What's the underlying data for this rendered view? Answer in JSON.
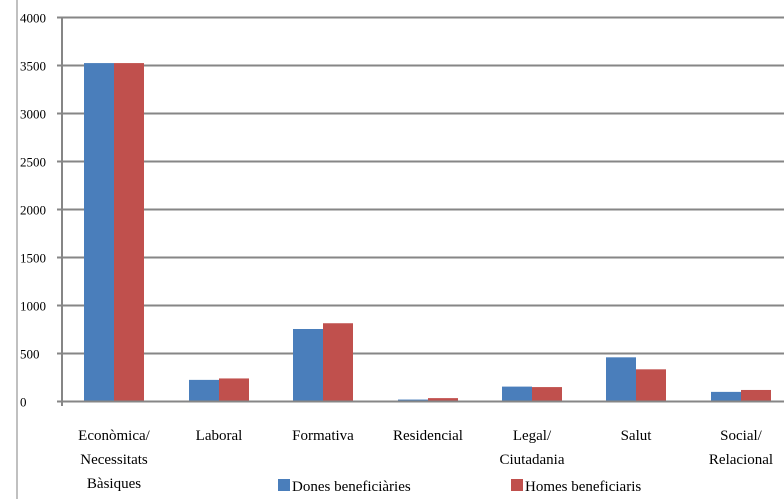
{
  "chart_data": {
    "type": "bar",
    "categories": [
      [
        "Econòmica/",
        "Necessitats",
        "Bàsiques"
      ],
      [
        "Laboral"
      ],
      [
        "Formativa"
      ],
      [
        "Residencial"
      ],
      [
        "Legal/",
        "Ciutadania"
      ],
      [
        "Salut"
      ],
      [
        "Social/",
        "Relacional"
      ]
    ],
    "series": [
      {
        "name": "Dones beneficiàries",
        "color": "#4a7ebb",
        "values": [
          3520,
          220,
          750,
          15,
          150,
          455,
          95
        ]
      },
      {
        "name": "Homes beneficiaris",
        "color": "#c0504d",
        "values": [
          3520,
          235,
          810,
          30,
          145,
          330,
          115
        ]
      }
    ],
    "ylim": [
      0,
      4000
    ],
    "yticks": [
      0,
      500,
      1000,
      1500,
      2000,
      2500,
      3000,
      3500,
      4000
    ],
    "grid": true,
    "legend_position": "bottom-center",
    "title": "",
    "xlabel": "",
    "ylabel": ""
  }
}
